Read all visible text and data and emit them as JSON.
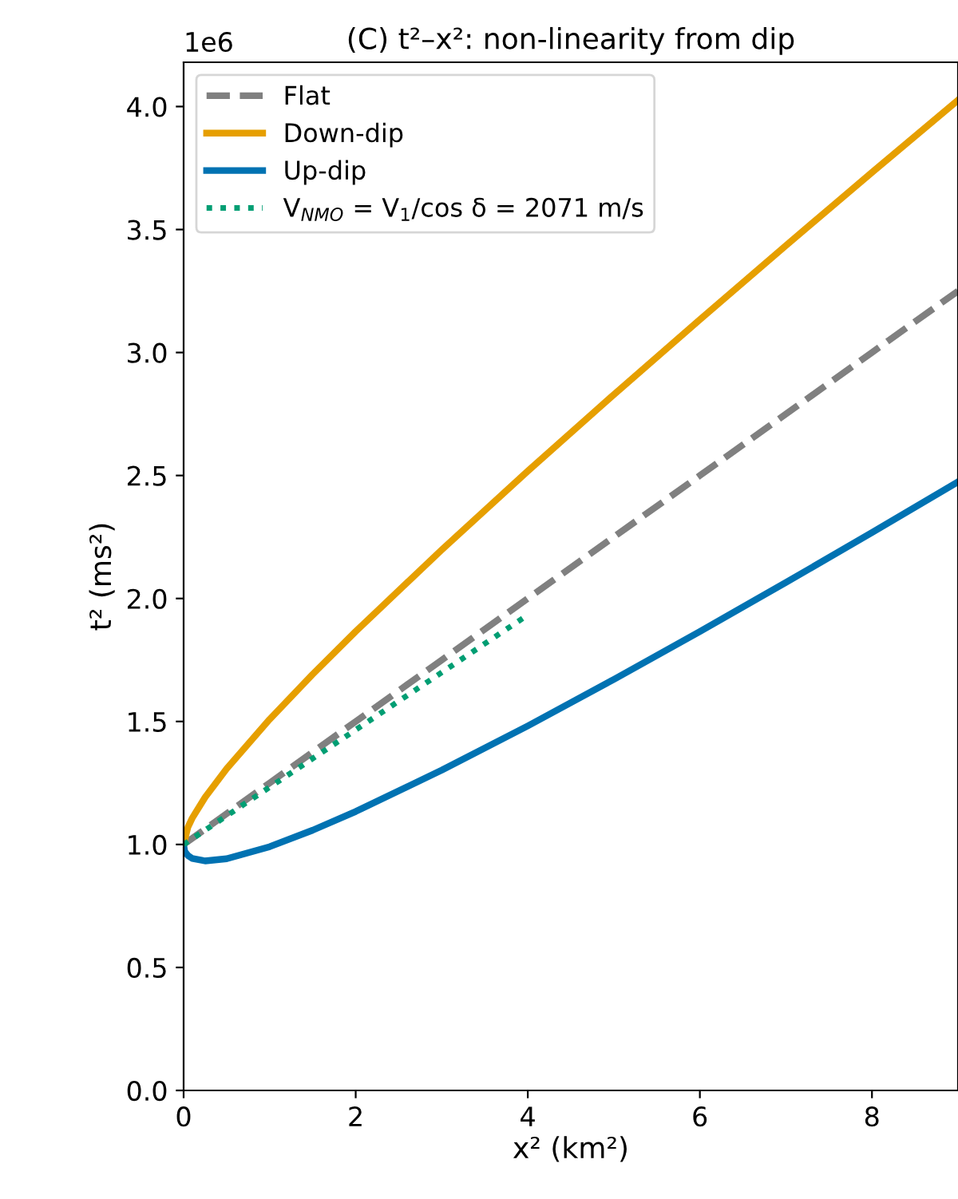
{
  "chart_data": {
    "type": "line",
    "title": "(C) t²–x²: non-linearity from dip",
    "xlabel": "x² (km²)",
    "ylabel": "t² (ms²)",
    "annotations": [
      "1e6"
    ],
    "xlim": [
      0,
      9
    ],
    "xticks": [
      0,
      2,
      4,
      6,
      8
    ],
    "ylim": [
      0,
      4.18
    ],
    "yticks": [
      {
        "value": 0,
        "label": "0.0"
      },
      {
        "value": 0.5,
        "label": "0.5"
      },
      {
        "value": 1,
        "label": "1.0"
      },
      {
        "value": 1.5,
        "label": "1.5"
      },
      {
        "value": 2,
        "label": "2.0"
      },
      {
        "value": 2.5,
        "label": "2.5"
      },
      {
        "value": 3,
        "label": "3.0"
      },
      {
        "value": 3.5,
        "label": "3.5"
      },
      {
        "value": 4,
        "label": "4.0"
      }
    ],
    "grid": false,
    "legend": "top left",
    "marker": "none",
    "series": [
      {
        "name": "Flat",
        "color": "#808080",
        "line_style": "dashed",
        "x": [
          0,
          1,
          2,
          3,
          4,
          5,
          6,
          7,
          8,
          9
        ],
        "values": [
          1.0,
          1.25,
          1.5,
          1.75,
          2.0,
          2.25,
          2.5,
          2.75,
          3.0,
          3.25
        ]
      },
      {
        "name": "Down-dip",
        "color": "#e69f00",
        "line_style": "solid",
        "x": [
          0,
          0.05,
          0.1,
          0.25,
          0.5,
          1,
          1.5,
          2,
          3,
          4,
          5,
          6,
          7,
          8,
          9
        ],
        "values": [
          1.0,
          1.07,
          1.107,
          1.192,
          1.308,
          1.509,
          1.692,
          1.866,
          2.198,
          2.518,
          2.829,
          3.134,
          3.435,
          3.732,
          4.026
        ]
      },
      {
        "name": "Up-dip",
        "color": "#0072b2",
        "line_style": "solid",
        "x": [
          0,
          0.01,
          0.02,
          0.05,
          0.1,
          0.25,
          0.5,
          1,
          1.5,
          2,
          3,
          4,
          5,
          6,
          7,
          8,
          9
        ],
        "values": [
          1.0,
          0.977,
          0.968,
          0.955,
          0.943,
          0.933,
          0.942,
          0.991,
          1.058,
          1.134,
          1.302,
          1.482,
          1.671,
          1.866,
          2.065,
          2.268,
          2.474
        ]
      },
      {
        "name": "V$_{NMO}$ = V$_{1}$/cos δ = 2071 m/s",
        "color": "#009e73",
        "line_style": "dotted",
        "x": [
          0,
          2,
          4
        ],
        "values": [
          1.0,
          1.466,
          1.933
        ]
      }
    ]
  }
}
